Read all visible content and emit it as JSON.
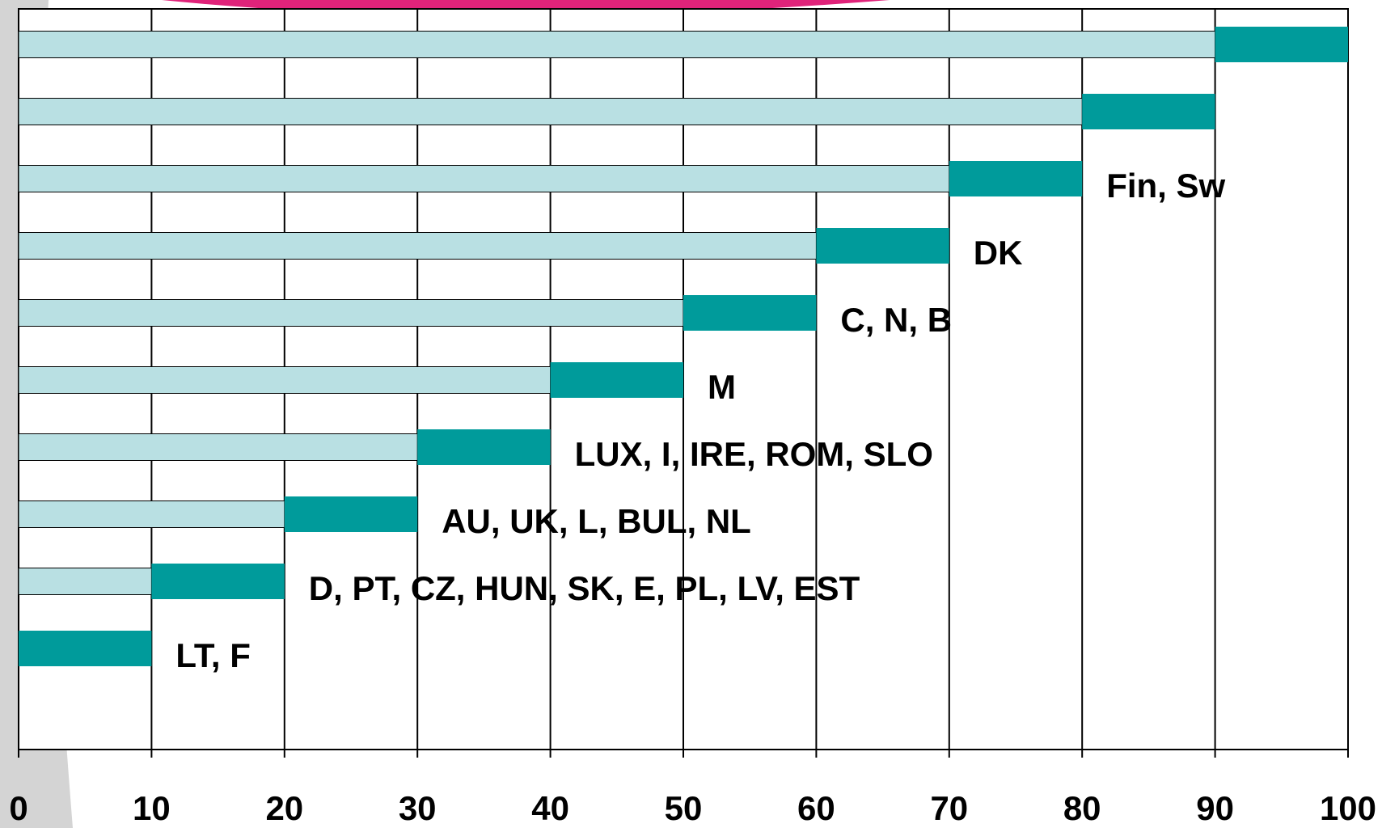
{
  "chart_data": {
    "type": "bar",
    "orientation": "horizontal",
    "stacked": true,
    "categories": [
      null,
      null,
      "Fin, Sw",
      "DK",
      "C, N, B",
      "M",
      "LUX, I, IRE, ROM, SLO",
      "AU, UK, L, BUL, NL",
      "D, PT, CZ, HUN, SK, E, PL, LV, EST",
      "LT, F"
    ],
    "series": [
      {
        "color": "#b9e0e3",
        "values": [
          90,
          80,
          70,
          60,
          50,
          40,
          30,
          20,
          10,
          0
        ]
      },
      {
        "color": "#009b9b",
        "values": [
          10,
          10,
          10,
          10,
          10,
          10,
          10,
          10,
          10,
          10
        ]
      }
    ],
    "xlim": [
      0,
      100
    ],
    "xticks": [
      0,
      10,
      20,
      30,
      40,
      50,
      60,
      70,
      80,
      90,
      100
    ],
    "grid": true
  }
}
